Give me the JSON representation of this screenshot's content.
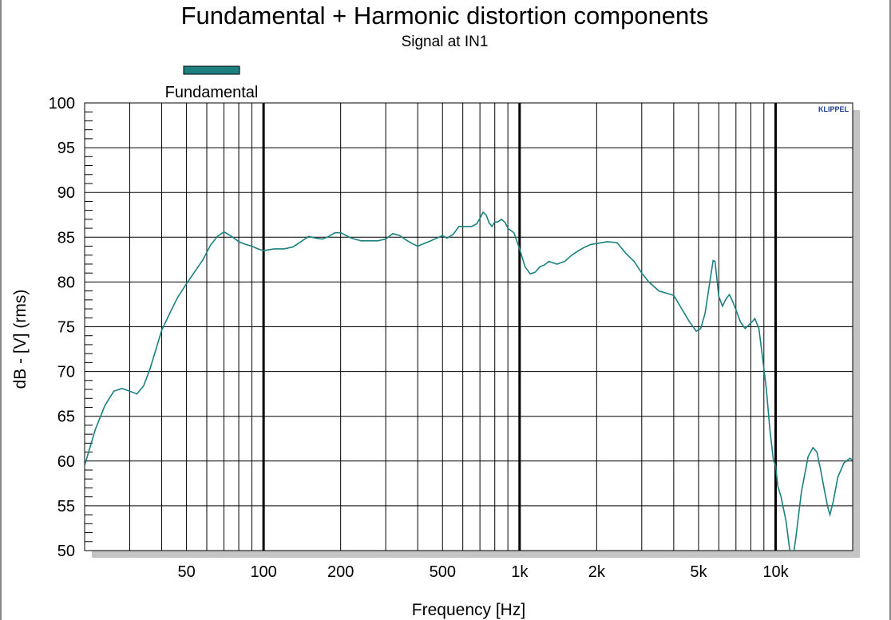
{
  "chart_data": {
    "type": "line",
    "title": "Fundamental + Harmonic distortion components",
    "subtitle": "Signal at IN1",
    "xlabel": "Frequency [Hz]",
    "ylabel": "dB - [V]  (rms)",
    "xscale": "log",
    "xlim": [
      20,
      20000
    ],
    "ylim": [
      50,
      100
    ],
    "x_tick_labels": [
      {
        "value": 50,
        "label": "50"
      },
      {
        "value": 100,
        "label": "100"
      },
      {
        "value": 200,
        "label": "200"
      },
      {
        "value": 500,
        "label": "500"
      },
      {
        "value": 1000,
        "label": "1k"
      },
      {
        "value": 2000,
        "label": "2k"
      },
      {
        "value": 5000,
        "label": "5k"
      },
      {
        "value": 10000,
        "label": "10k"
      }
    ],
    "y_ticks": [
      50,
      55,
      60,
      65,
      70,
      75,
      80,
      85,
      90,
      95,
      100
    ],
    "grid": true,
    "legend_position": "top-left",
    "watermark": "KLIPPEL",
    "series": [
      {
        "name": "Fundamental",
        "color": "#1a8080",
        "x": [
          20,
          22,
          24,
          26,
          28,
          30,
          32,
          34,
          36,
          38,
          40,
          43,
          46,
          50,
          54,
          58,
          62,
          66,
          70,
          75,
          80,
          85,
          90,
          95,
          100,
          110,
          120,
          130,
          140,
          150,
          160,
          170,
          180,
          190,
          200,
          220,
          240,
          260,
          280,
          300,
          320,
          340,
          360,
          380,
          400,
          450,
          500,
          520,
          550,
          580,
          600,
          650,
          680,
          700,
          720,
          740,
          760,
          780,
          800,
          820,
          850,
          880,
          900,
          950,
          1000,
          1050,
          1100,
          1150,
          1200,
          1250,
          1300,
          1400,
          1500,
          1600,
          1700,
          1800,
          1900,
          2000,
          2200,
          2400,
          2600,
          2800,
          3000,
          3200,
          3500,
          3800,
          4000,
          4300,
          4600,
          4900,
          5100,
          5300,
          5500,
          5700,
          5800,
          6000,
          6200,
          6400,
          6600,
          6800,
          7000,
          7300,
          7600,
          8000,
          8300,
          8600,
          8900,
          9200,
          9500,
          9800,
          10000,
          10200,
          10500,
          11000,
          11300,
          11500,
          11700,
          12000,
          12600,
          13400,
          14000,
          14500,
          15000,
          15500,
          16000,
          16300,
          16800,
          17500,
          18500,
          19500,
          20000
        ],
        "y": [
          59.5,
          63.5,
          66.2,
          67.8,
          68.1,
          67.8,
          67.5,
          68.4,
          70.3,
          72.5,
          74.6,
          76.5,
          78.2,
          79.8,
          81.2,
          82.5,
          84.1,
          85.1,
          85.6,
          85.1,
          84.5,
          84.2,
          84.0,
          83.7,
          83.5,
          83.7,
          83.7,
          83.9,
          84.5,
          85.1,
          84.9,
          84.8,
          85.1,
          85.5,
          85.5,
          84.9,
          84.6,
          84.6,
          84.6,
          84.8,
          85.4,
          85.2,
          84.7,
          84.3,
          84.0,
          84.6,
          85.2,
          84.9,
          85.3,
          86.2,
          86.2,
          86.2,
          86.5,
          87.1,
          87.8,
          87.5,
          86.6,
          86.2,
          86.7,
          86.7,
          87.0,
          86.6,
          86.0,
          85.5,
          83.7,
          81.7,
          80.9,
          81.1,
          81.7,
          81.9,
          82.3,
          82.0,
          82.3,
          83.0,
          83.5,
          83.9,
          84.2,
          84.3,
          84.5,
          84.4,
          83.2,
          82.3,
          81.0,
          80.0,
          79.0,
          78.7,
          78.5,
          77.0,
          75.6,
          74.5,
          74.8,
          76.5,
          79.5,
          82.4,
          82.3,
          78.4,
          77.3,
          78.1,
          78.6,
          77.8,
          76.9,
          75.5,
          74.8,
          75.4,
          75.9,
          74.8,
          71.5,
          68.0,
          63.5,
          60.1,
          59.5,
          57.2,
          56.0,
          53.2,
          50.5,
          49.2,
          49.2,
          51.5,
          56.5,
          60.5,
          61.5,
          61.0,
          59.0,
          56.8,
          54.8,
          54.0,
          55.5,
          58.2,
          59.8,
          60.3,
          60.1
        ]
      }
    ]
  }
}
